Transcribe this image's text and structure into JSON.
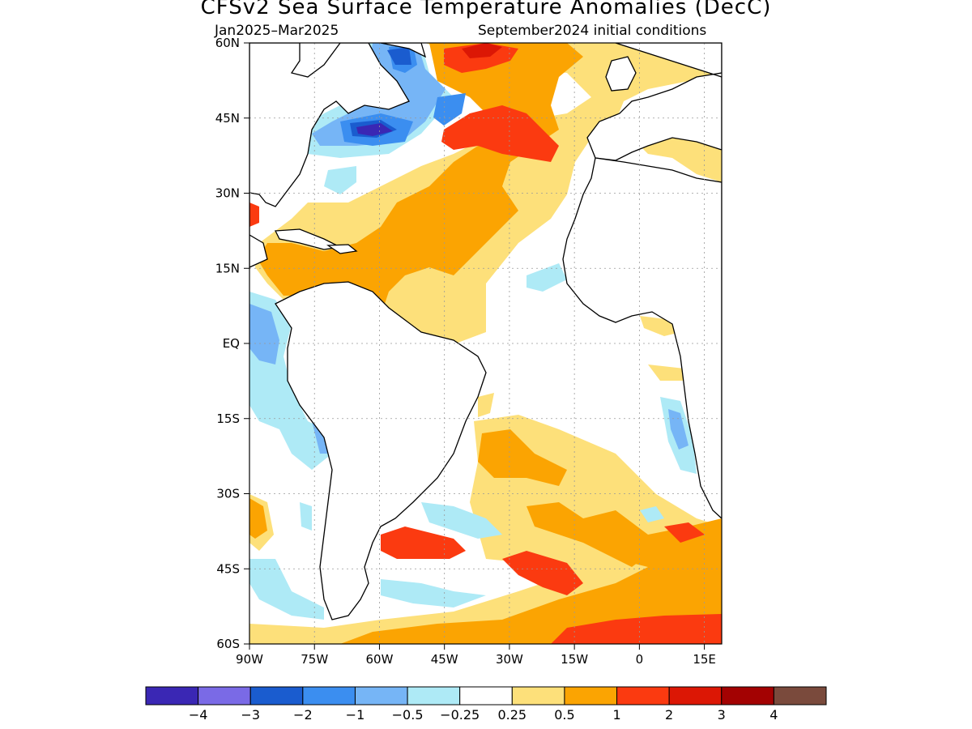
{
  "title": "CFSv2 Sea Surface Temperature Anomalies (DecC)",
  "subtitle_left": "Jan2025–Mar2025",
  "subtitle_right": "September2024 initial conditions",
  "map": {
    "region": "Atlantic Ocean",
    "lon_range": [
      -90,
      19
    ],
    "lat_range": [
      -60,
      60
    ],
    "grid": "dotted",
    "lat_labels": [
      "60N",
      "45N",
      "30N",
      "15N",
      "EQ",
      "15S",
      "30S",
      "45S",
      "60S"
    ],
    "lat_values": [
      60,
      45,
      30,
      15,
      0,
      -15,
      -30,
      -45,
      -60
    ],
    "lon_labels": [
      "90W",
      "75W",
      "60W",
      "45W",
      "30W",
      "15W",
      "0",
      "15E"
    ],
    "lon_values": [
      -90,
      -75,
      -60,
      -45,
      -30,
      -15,
      0,
      15
    ],
    "land_color": "#ffffff",
    "coast_color": "#000000"
  },
  "colorbar": {
    "colors": [
      "#3a27b4",
      "#7a6ae6",
      "#1a5ccf",
      "#3b8ef0",
      "#76b5f6",
      "#aeeaf6",
      "#ffffff",
      "#fde07a",
      "#fba402",
      "#fb3a10",
      "#dc1705",
      "#a30202",
      "#7a4a3c"
    ],
    "labels": [
      "−4",
      "−3",
      "−2",
      "−1",
      "−0.5",
      "−0.25",
      "0.25",
      "0.5",
      "1",
      "2",
      "3",
      "4"
    ]
  }
}
